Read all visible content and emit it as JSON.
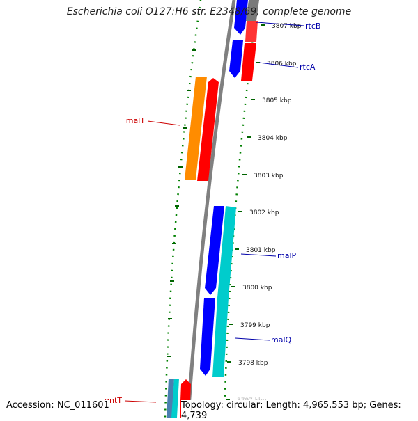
{
  "title": "Escherichia coli O127:H6 str. E2348/69, complete genome",
  "footer": {
    "accession_label": "Accession:",
    "accession": "NC_011601",
    "topology_text": "Topology: circular; Length: 4,965,553 bp; Genes: 4,739"
  },
  "ticks": [
    {
      "label": "3807 kbp"
    },
    {
      "label": "3806 kbp"
    },
    {
      "label": "3805 kbp"
    },
    {
      "label": "3804 kbp"
    },
    {
      "label": "3803 kbp"
    },
    {
      "label": "3802 kbp"
    },
    {
      "label": "3801 kbp"
    },
    {
      "label": "3800 kbp"
    },
    {
      "label": "3799 kbp"
    },
    {
      "label": "3798 kbp"
    },
    {
      "label": "3797 kbp"
    }
  ],
  "genes": [
    {
      "name": "rtcB",
      "color": "#0000aa"
    },
    {
      "name": "rtcA",
      "color": "#0000aa"
    },
    {
      "name": "malT",
      "color": "#cc0000"
    },
    {
      "name": "malP",
      "color": "#0000aa"
    },
    {
      "name": "malQ",
      "color": "#0000aa"
    },
    {
      "name": "gntT",
      "color": "#cc0000"
    }
  ],
  "colors": {
    "blue": "#0000ff",
    "red": "#ff0000",
    "orange": "#ff8c00",
    "cyan": "#00cccc",
    "gray": "#808080",
    "dots": "#008000"
  }
}
